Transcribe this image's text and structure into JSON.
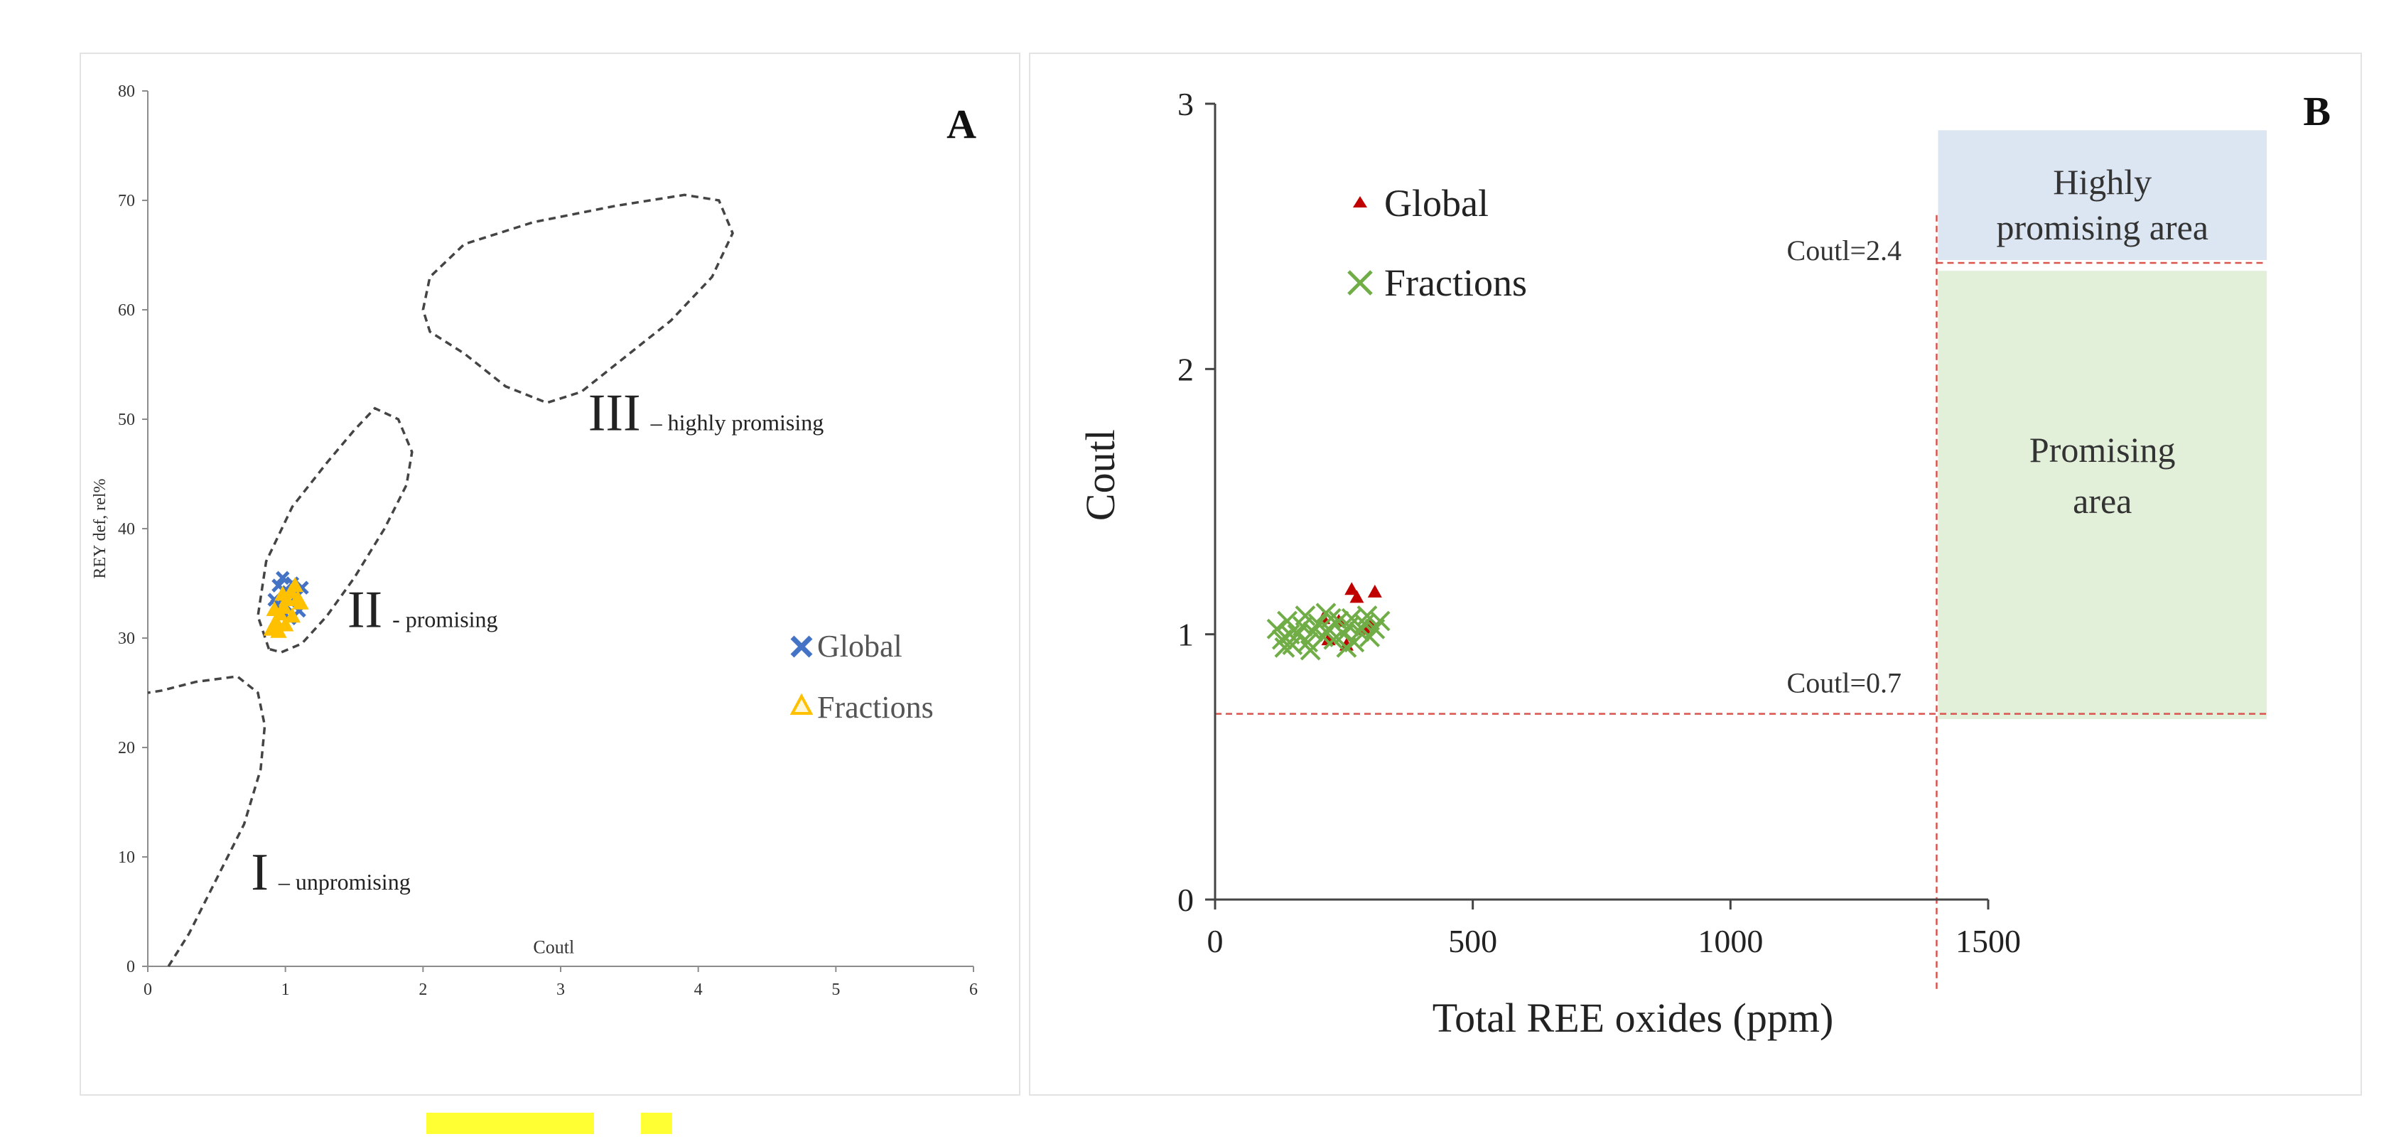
{
  "chart_data": [
    {
      "type": "scatter",
      "panel_label": "A",
      "title": "",
      "xlabel": "Coutl",
      "ylabel": "REY def, rel%",
      "xlim": [
        0,
        6
      ],
      "ylim": [
        0,
        80
      ],
      "xticks": [
        0,
        1,
        2,
        3,
        4,
        5,
        6
      ],
      "yticks": [
        0,
        10,
        20,
        30,
        40,
        50,
        60,
        70,
        80
      ],
      "grid": false,
      "legend_position": "right",
      "zones": [
        {
          "numeral": "I",
          "label": "– unpromising"
        },
        {
          "numeral": "II",
          "label": "- promising"
        },
        {
          "numeral": "III",
          "label": "– highly promising"
        }
      ],
      "series": [
        {
          "name": "Global",
          "marker": "×",
          "color": "#4472c4",
          "points": [
            [
              0.92,
              33.5
            ],
            [
              0.95,
              34.8
            ],
            [
              0.98,
              35.5
            ],
            [
              1.0,
              33.0
            ],
            [
              1.02,
              34.2
            ],
            [
              1.05,
              35.0
            ],
            [
              1.08,
              33.8
            ],
            [
              1.1,
              32.5
            ],
            [
              0.97,
              32.0
            ],
            [
              1.03,
              31.8
            ],
            [
              1.12,
              34.6
            ],
            [
              0.94,
              33.0
            ]
          ]
        },
        {
          "name": "Fractions",
          "marker": "△",
          "color": "#ffc000",
          "points": [
            [
              0.9,
              30.8
            ],
            [
              0.93,
              31.5
            ],
            [
              0.96,
              32.2
            ],
            [
              0.99,
              32.8
            ],
            [
              1.01,
              33.5
            ],
            [
              1.04,
              34.2
            ],
            [
              1.07,
              34.8
            ],
            [
              1.09,
              33.6
            ],
            [
              0.95,
              30.6
            ],
            [
              1.0,
              31.2
            ],
            [
              1.05,
              32.0
            ],
            [
              1.11,
              33.2
            ],
            [
              0.92,
              32.6
            ],
            [
              0.98,
              34.0
            ]
          ]
        }
      ]
    },
    {
      "type": "scatter",
      "panel_label": "B",
      "title": "",
      "xlabel": "Total REE oxides (ppm)",
      "ylabel": "Coutl",
      "xlim": [
        0,
        1500
      ],
      "ylim": [
        0,
        3
      ],
      "xticks": [
        0,
        500,
        1000,
        1500
      ],
      "yticks": [
        0,
        1,
        2,
        3
      ],
      "grid": false,
      "legend_position": "top-left",
      "thresholds": [
        {
          "label": "Coutl=2.4",
          "value": 2.4
        },
        {
          "label": "Coutl=0.7",
          "value": 0.7
        }
      ],
      "vertical_threshold": 1400,
      "areas": [
        {
          "label_lines": [
            "Highly",
            "promising area"
          ],
          "color": "#dce6f2"
        },
        {
          "label_lines": [
            "Promising",
            "area"
          ],
          "color": "#e2efd9"
        }
      ],
      "series": [
        {
          "name": "Global",
          "marker": "▲",
          "color": "#c00000",
          "points": [
            [
              265,
              1.17
            ],
            [
              310,
              1.16
            ],
            [
              275,
              1.14
            ],
            [
              240,
              1.05
            ],
            [
              220,
              0.98
            ],
            [
              290,
              1.02
            ],
            [
              255,
              0.96
            ],
            [
              300,
              1.04
            ],
            [
              210,
              1.06
            ]
          ]
        },
        {
          "name": "Fractions",
          "marker": "×",
          "color": "#70ad47",
          "points": [
            [
              120,
              1.02
            ],
            [
              130,
              0.98
            ],
            [
              140,
              1.05
            ],
            [
              150,
              0.96
            ],
            [
              160,
              1.0
            ],
            [
              170,
              1.03
            ],
            [
              180,
              0.97
            ],
            [
              190,
              1.01
            ],
            [
              200,
              1.04
            ],
            [
              210,
              0.99
            ],
            [
              220,
              1.02
            ],
            [
              230,
              0.98
            ],
            [
              240,
              1.05
            ],
            [
              250,
              1.0
            ],
            [
              260,
              1.03
            ],
            [
              270,
              0.97
            ],
            [
              280,
              1.01
            ],
            [
              290,
              1.04
            ],
            [
              300,
              0.99
            ],
            [
              310,
              1.02
            ],
            [
              135,
              0.95
            ],
            [
              175,
              1.07
            ],
            [
              215,
              1.08
            ],
            [
              255,
              0.95
            ],
            [
              295,
              1.07
            ],
            [
              145,
              1.0
            ],
            [
              185,
              0.94
            ],
            [
              225,
              1.06
            ],
            [
              265,
              1.06
            ],
            [
              320,
              1.05
            ]
          ]
        }
      ]
    }
  ]
}
